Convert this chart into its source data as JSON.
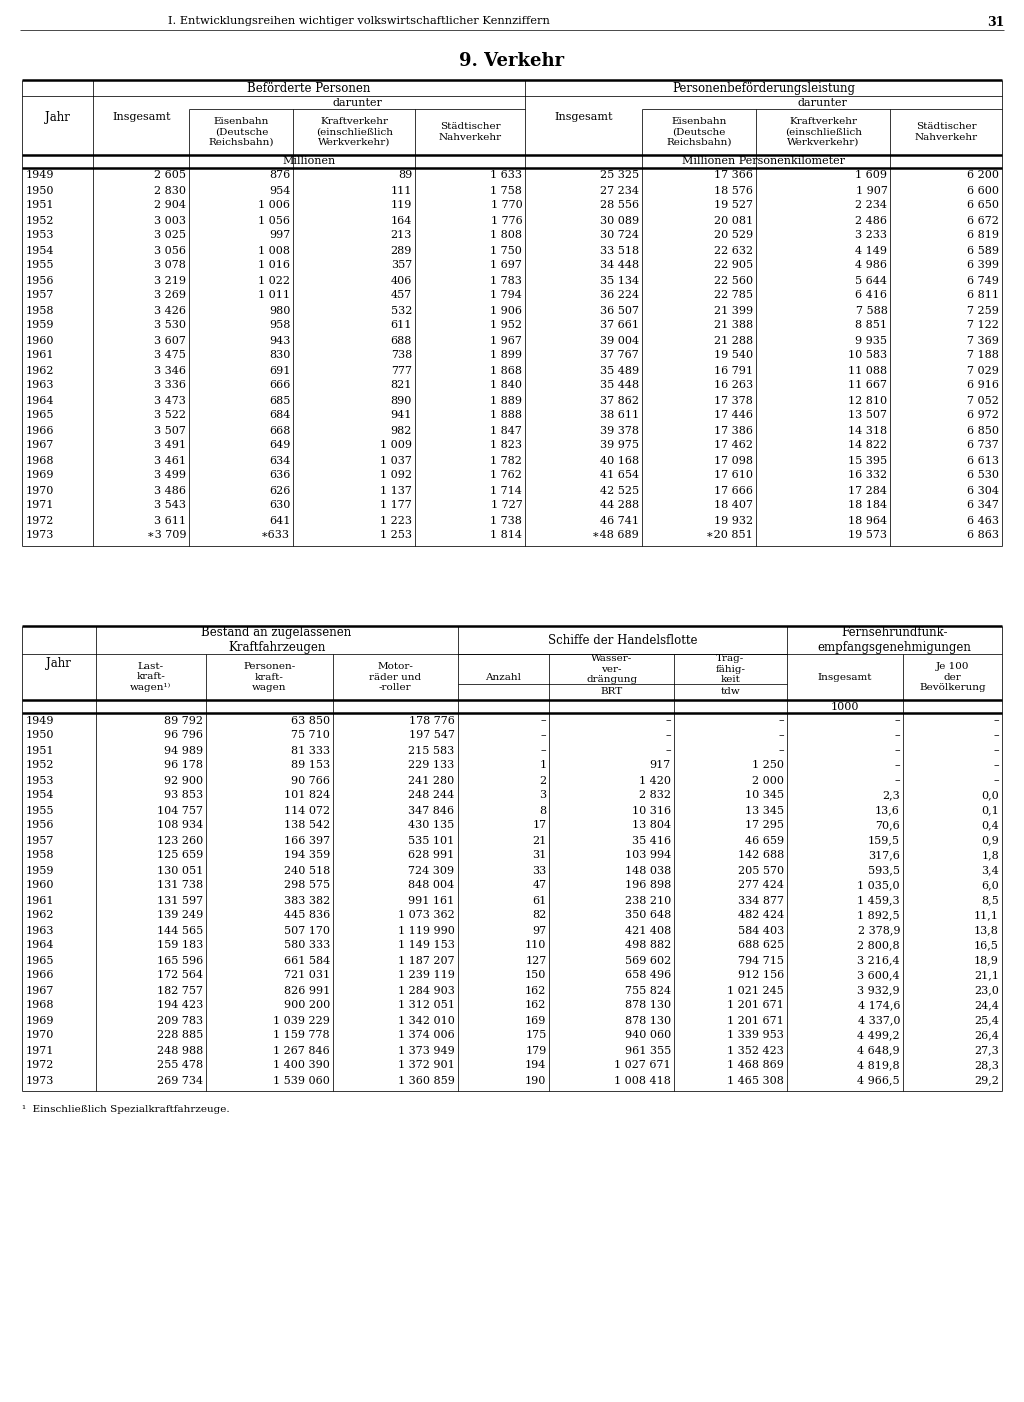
{
  "page_header": "I. Entwicklungsreihen wichtiger volkswirtschaftlicher Kennziffern",
  "page_number": "31",
  "section_title": "9. Verkehr",
  "table1_data": [
    [
      "1949",
      "2 605",
      "876",
      "89",
      "1 633",
      "25 325",
      "17 366",
      "1 609",
      "6 200"
    ],
    [
      "1950",
      "2 830",
      "954",
      "111",
      "1 758",
      "27 234",
      "18 576",
      "1 907",
      "6 600"
    ],
    [
      "1951",
      "2 904",
      "1 006",
      "119",
      "1 770",
      "28 556",
      "19 527",
      "2 234",
      "6 650"
    ],
    [
      "1952",
      "3 003",
      "1 056",
      "164",
      "1 776",
      "30 089",
      "20 081",
      "2 486",
      "6 672"
    ],
    [
      "1953",
      "3 025",
      "997",
      "213",
      "1 808",
      "30 724",
      "20 529",
      "3 233",
      "6 819"
    ],
    [
      "1954",
      "3 056",
      "1 008",
      "289",
      "1 750",
      "33 518",
      "22 632",
      "4 149",
      "6 589"
    ],
    [
      "1955",
      "3 078",
      "1 016",
      "357",
      "1 697",
      "34 448",
      "22 905",
      "4 986",
      "6 399"
    ],
    [
      "1956",
      "3 219",
      "1 022",
      "406",
      "1 783",
      "35 134",
      "22 560",
      "5 644",
      "6 749"
    ],
    [
      "1957",
      "3 269",
      "1 011",
      "457",
      "1 794",
      "36 224",
      "22 785",
      "6 416",
      "6 811"
    ],
    [
      "1958",
      "3 426",
      "980",
      "532",
      "1 906",
      "36 507",
      "21 399",
      "7 588",
      "7 259"
    ],
    [
      "1959",
      "3 530",
      "958",
      "611",
      "1 952",
      "37 661",
      "21 388",
      "8 851",
      "7 122"
    ],
    [
      "1960",
      "3 607",
      "943",
      "688",
      "1 967",
      "39 004",
      "21 288",
      "9 935",
      "7 369"
    ],
    [
      "1961",
      "3 475",
      "830",
      "738",
      "1 899",
      "37 767",
      "19 540",
      "10 583",
      "7 188"
    ],
    [
      "1962",
      "3 346",
      "691",
      "777",
      "1 868",
      "35 489",
      "16 791",
      "11 088",
      "7 029"
    ],
    [
      "1963",
      "3 336",
      "666",
      "821",
      "1 840",
      "35 448",
      "16 263",
      "11 667",
      "6 916"
    ],
    [
      "1964",
      "3 473",
      "685",
      "890",
      "1 889",
      "37 862",
      "17 378",
      "12 810",
      "7 052"
    ],
    [
      "1965",
      "3 522",
      "684",
      "941",
      "1 888",
      "38 611",
      "17 446",
      "13 507",
      "6 972"
    ],
    [
      "1966",
      "3 507",
      "668",
      "982",
      "1 847",
      "39 378",
      "17 386",
      "14 318",
      "6 850"
    ],
    [
      "1967",
      "3 491",
      "649",
      "1 009",
      "1 823",
      "39 975",
      "17 462",
      "14 822",
      "6 737"
    ],
    [
      "1968",
      "3 461",
      "634",
      "1 037",
      "1 782",
      "40 168",
      "17 098",
      "15 395",
      "6 613"
    ],
    [
      "1969",
      "3 499",
      "636",
      "1 092",
      "1 762",
      "41 654",
      "17 610",
      "16 332",
      "6 530"
    ],
    [
      "1970",
      "3 486",
      "626",
      "1 137",
      "1 714",
      "42 525",
      "17 666",
      "17 284",
      "6 304"
    ],
    [
      "1971",
      "3 543",
      "630",
      "1 177",
      "1 727",
      "44 288",
      "18 407",
      "18 184",
      "6 347"
    ],
    [
      "1972",
      "3 611",
      "641",
      "1 223",
      "1 738",
      "46 741",
      "19 932",
      "18 964",
      "6 463"
    ],
    [
      "1973",
      "∗3 709",
      "∗633",
      "1 253",
      "1 814",
      "∗48 689",
      "∗20 851",
      "19 573",
      "6 863"
    ]
  ],
  "table2_data": [
    [
      "1949",
      "89 792",
      "63 850",
      "178 776",
      "–",
      "–",
      "–",
      "–",
      "–"
    ],
    [
      "1950",
      "96 796",
      "75 710",
      "197 547",
      "–",
      "–",
      "–",
      "–",
      "–"
    ],
    [
      "1951",
      "94 989",
      "81 333",
      "215 583",
      "–",
      "–",
      "–",
      "–",
      "–"
    ],
    [
      "1952",
      "96 178",
      "89 153",
      "229 133",
      "1",
      "917",
      "1 250",
      "–",
      "–"
    ],
    [
      "1953",
      "92 900",
      "90 766",
      "241 280",
      "2",
      "1 420",
      "2 000",
      "–",
      "–"
    ],
    [
      "1954",
      "93 853",
      "101 824",
      "248 244",
      "3",
      "2 832",
      "10 345",
      "2,3",
      "0,0"
    ],
    [
      "1955",
      "104 757",
      "114 072",
      "347 846",
      "8",
      "10 316",
      "13 345",
      "13,6",
      "0,1"
    ],
    [
      "1956",
      "108 934",
      "138 542",
      "430 135",
      "17",
      "13 804",
      "17 295",
      "70,6",
      "0,4"
    ],
    [
      "1957",
      "123 260",
      "166 397",
      "535 101",
      "21",
      "35 416",
      "46 659",
      "159,5",
      "0,9"
    ],
    [
      "1958",
      "125 659",
      "194 359",
      "628 991",
      "31",
      "103 994",
      "142 688",
      "317,6",
      "1,8"
    ],
    [
      "1959",
      "130 051",
      "240 518",
      "724 309",
      "33",
      "148 038",
      "205 570",
      "593,5",
      "3,4"
    ],
    [
      "1960",
      "131 738",
      "298 575",
      "848 004",
      "47",
      "196 898",
      "277 424",
      "1 035,0",
      "6,0"
    ],
    [
      "1961",
      "131 597",
      "383 382",
      "991 161",
      "61",
      "238 210",
      "334 877",
      "1 459,3",
      "8,5"
    ],
    [
      "1962",
      "139 249",
      "445 836",
      "1 073 362",
      "82",
      "350 648",
      "482 424",
      "1 892,5",
      "11,1"
    ],
    [
      "1963",
      "144 565",
      "507 170",
      "1 119 990",
      "97",
      "421 408",
      "584 403",
      "2 378,9",
      "13,8"
    ],
    [
      "1964",
      "159 183",
      "580 333",
      "1 149 153",
      "110",
      "498 882",
      "688 625",
      "2 800,8",
      "16,5"
    ],
    [
      "1965",
      "165 596",
      "661 584",
      "1 187 207",
      "127",
      "569 602",
      "794 715",
      "3 216,4",
      "18,9"
    ],
    [
      "1966",
      "172 564",
      "721 031",
      "1 239 119",
      "150",
      "658 496",
      "912 156",
      "3 600,4",
      "21,1"
    ],
    [
      "1967",
      "182 757",
      "826 991",
      "1 284 903",
      "162",
      "755 824",
      "1 021 245",
      "3 932,9",
      "23,0"
    ],
    [
      "1968",
      "194 423",
      "900 200",
      "1 312 051",
      "162",
      "878 130",
      "1 201 671",
      "4 174,6",
      "24,4"
    ],
    [
      "1969",
      "209 783",
      "1 039 229",
      "1 342 010",
      "169",
      "878 130",
      "1 201 671",
      "4 337,0",
      "25,4"
    ],
    [
      "1970",
      "228 885",
      "1 159 778",
      "1 374 006",
      "175",
      "940 060",
      "1 339 953",
      "4 499,2",
      "26,4"
    ],
    [
      "1971",
      "248 988",
      "1 267 846",
      "1 373 949",
      "179",
      "961 355",
      "1 352 423",
      "4 648,9",
      "27,3"
    ],
    [
      "1972",
      "255 478",
      "1 400 390",
      "1 372 901",
      "194",
      "1 027 671",
      "1 468 869",
      "4 819,8",
      "28,3"
    ],
    [
      "1973",
      "269 734",
      "1 539 060",
      "1 360 859",
      "190",
      "1 008 418",
      "1 465 308",
      "4 966,5",
      "29,2"
    ]
  ],
  "footnote": "¹  Einschließlich Spezialkraftfahrzeuge."
}
